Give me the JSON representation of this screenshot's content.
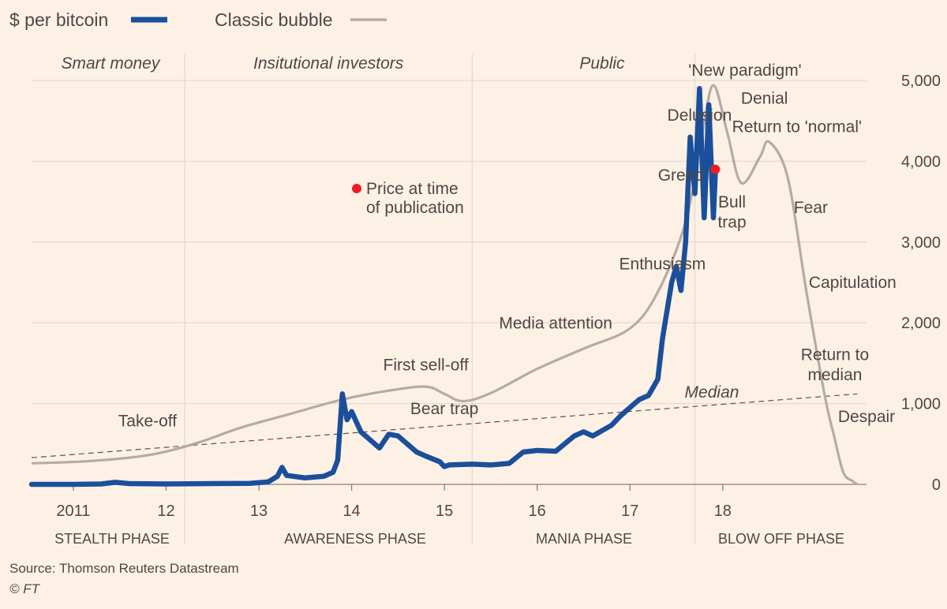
{
  "chart_data": {
    "type": "line",
    "legend": [
      {
        "name": "$ per bitcoin",
        "color": "#1b4f9b"
      },
      {
        "name": "Classic bubble",
        "color": "#b3aca6"
      }
    ],
    "ylim": [
      0,
      5000
    ],
    "y_ticks": [
      {
        "value": 0,
        "label": "0"
      },
      {
        "value": 1000,
        "label": "1,000"
      },
      {
        "value": 2000,
        "label": "2,000"
      },
      {
        "value": 3000,
        "label": "3,000"
      },
      {
        "value": 4000,
        "label": "4,000"
      },
      {
        "value": 5000,
        "label": "5,000"
      }
    ],
    "xlim": [
      2010.55,
      2019.55
    ],
    "x_ticks": [
      {
        "value": 2011,
        "label": "2011"
      },
      {
        "value": 2012,
        "label": "12"
      },
      {
        "value": 2013,
        "label": "13"
      },
      {
        "value": 2014,
        "label": "14"
      },
      {
        "value": 2015,
        "label": "15"
      },
      {
        "value": 2016,
        "label": "16"
      },
      {
        "value": 2017,
        "label": "17"
      },
      {
        "value": 2018,
        "label": "18"
      }
    ],
    "phase_dividers": [
      2012.2,
      2015.3,
      2017.7
    ],
    "top_phases": [
      {
        "label": "Smart money",
        "x": 2011.4
      },
      {
        "label": "Insitutional investors",
        "x": 2013.75
      },
      {
        "label": "Public",
        "x": 2016.7
      }
    ],
    "bottom_phases": [
      {
        "label": "STEALTH PHASE",
        "x": 2011.4
      },
      {
        "label": "AWARENESS PHASE",
        "x": 2013.75
      },
      {
        "label": "MANIA PHASE",
        "x": 216.7
      },
      {
        "label": "BLOW OFF PHASE",
        "x": 2019.4
      }
    ],
    "series": [
      {
        "name": "$ per bitcoin",
        "color": "#1b4f9b",
        "points": [
          [
            2010.55,
            0
          ],
          [
            2011.0,
            0
          ],
          [
            2011.3,
            5
          ],
          [
            2011.45,
            25
          ],
          [
            2011.6,
            10
          ],
          [
            2012.0,
            5
          ],
          [
            2012.5,
            10
          ],
          [
            2012.9,
            13
          ],
          [
            2013.1,
            30
          ],
          [
            2013.2,
            100
          ],
          [
            2013.25,
            210
          ],
          [
            2013.3,
            110
          ],
          [
            2013.5,
            80
          ],
          [
            2013.7,
            100
          ],
          [
            2013.8,
            150
          ],
          [
            2013.85,
            300
          ],
          [
            2013.9,
            1120
          ],
          [
            2013.95,
            800
          ],
          [
            2014.0,
            900
          ],
          [
            2014.1,
            650
          ],
          [
            2014.2,
            550
          ],
          [
            2014.3,
            450
          ],
          [
            2014.4,
            620
          ],
          [
            2014.5,
            600
          ],
          [
            2014.6,
            500
          ],
          [
            2014.7,
            400
          ],
          [
            2014.8,
            350
          ],
          [
            2014.95,
            280
          ],
          [
            2015.0,
            220
          ],
          [
            2015.05,
            240
          ],
          [
            2015.3,
            250
          ],
          [
            2015.5,
            240
          ],
          [
            2015.7,
            260
          ],
          [
            2015.85,
            400
          ],
          [
            2016.0,
            420
          ],
          [
            2016.2,
            410
          ],
          [
            2016.4,
            600
          ],
          [
            2016.5,
            650
          ],
          [
            2016.6,
            600
          ],
          [
            2016.8,
            730
          ],
          [
            2016.9,
            850
          ],
          [
            2017.0,
            950
          ],
          [
            2017.1,
            1050
          ],
          [
            2017.2,
            1100
          ],
          [
            2017.3,
            1300
          ],
          [
            2017.35,
            1800
          ],
          [
            2017.45,
            2500
          ],
          [
            2017.5,
            2700
          ],
          [
            2017.55,
            2400
          ],
          [
            2017.6,
            3000
          ],
          [
            2017.65,
            4300
          ],
          [
            2017.7,
            3600
          ],
          [
            2017.75,
            4900
          ],
          [
            2017.8,
            3300
          ],
          [
            2017.85,
            4700
          ],
          [
            2017.9,
            3300
          ],
          [
            2017.92,
            3850
          ]
        ]
      },
      {
        "name": "Classic bubble",
        "color": "#b3aca6",
        "points": [
          [
            2010.55,
            260
          ],
          [
            2011.2,
            290
          ],
          [
            2011.8,
            360
          ],
          [
            2012.3,
            500
          ],
          [
            2012.8,
            700
          ],
          [
            2013.3,
            860
          ],
          [
            2013.9,
            1050
          ],
          [
            2014.4,
            1160
          ],
          [
            2014.8,
            1210
          ],
          [
            2015.0,
            1120
          ],
          [
            2015.2,
            1030
          ],
          [
            2015.5,
            1130
          ],
          [
            2016.0,
            1430
          ],
          [
            2016.5,
            1680
          ],
          [
            2017.0,
            1930
          ],
          [
            2017.3,
            2380
          ],
          [
            2017.6,
            3250
          ],
          [
            2017.78,
            4350
          ],
          [
            2017.9,
            4940
          ],
          [
            2018.05,
            4350
          ],
          [
            2018.2,
            3730
          ],
          [
            2018.4,
            4050
          ],
          [
            2018.5,
            4240
          ],
          [
            2018.7,
            3800
          ],
          [
            2018.9,
            2400
          ],
          [
            2019.1,
            1100
          ],
          [
            2019.2,
            600
          ],
          [
            2019.3,
            150
          ],
          [
            2019.4,
            40
          ],
          [
            2019.45,
            0
          ]
        ]
      }
    ],
    "median_line": {
      "label": "Median",
      "from": [
        2010.55,
        330
      ],
      "to": [
        2019.45,
        1120
      ]
    },
    "current_price": {
      "label": "Price at time of publication",
      "label_line1": "Price at time",
      "label_line2": "of publication",
      "x": 2017.92,
      "y": 3900,
      "color": "#ee1d23"
    },
    "annotations": [
      {
        "text": "Take-off",
        "x": 2011.8,
        "y": 720
      },
      {
        "text": "First sell-off",
        "x": 2014.8,
        "y": 1410
      },
      {
        "text": "Bear trap",
        "x": 2015.0,
        "y": 870
      },
      {
        "text": "Media attention",
        "x": 2016.2,
        "y": 1930
      },
      {
        "text": "Enthusiasm",
        "x": 2017.35,
        "y": 2660
      },
      {
        "text": "Greed",
        "x": 2017.55,
        "y": 3760
      },
      {
        "text": "Delusion",
        "x": 2017.75,
        "y": 4500
      },
      {
        "text": "'New paradigm'",
        "x": 2018.6,
        "y": 5060
      },
      {
        "text": "Denial",
        "x": 2018.45,
        "y": 4710
      },
      {
        "text": "Return to 'normal'",
        "x": 2019.45,
        "y": 4360
      },
      {
        "text": "Bull",
        "x": 2018.1,
        "y": 3430
      },
      {
        "text": "trap",
        "x": 2018.1,
        "y": 3180
      },
      {
        "text": "Fear",
        "x": 2018.95,
        "y": 3360
      },
      {
        "text": "Capitulation",
        "x": 2019.4,
        "y": 2430
      },
      {
        "text": "Return to",
        "x": 2019.55,
        "y": 1540
      },
      {
        "text": "median",
        "x": 2019.55,
        "y": 1290
      },
      {
        "text": "Despair",
        "x": 2019.55,
        "y": 770
      }
    ],
    "source": "Source: Thomson Reuters Datastream",
    "credit": "© FT"
  }
}
